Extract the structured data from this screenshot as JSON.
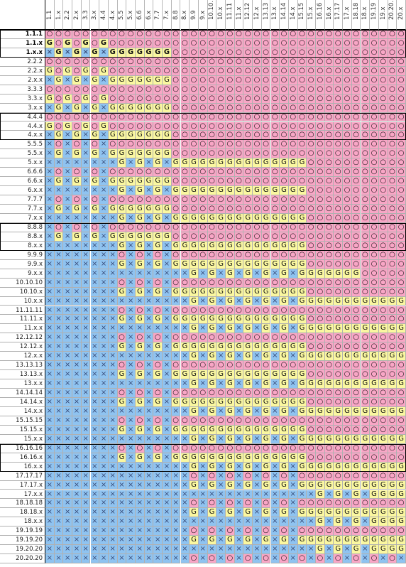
{
  "columns": [
    "1.1",
    "1.x",
    "2.2",
    "2.x",
    "3.3",
    "3.x",
    "4.4",
    "4.x",
    "5.5",
    "5.x",
    "6.6",
    "6.x",
    "7.7",
    "7.x",
    "8.8",
    "8.x",
    "9.9",
    "9.x",
    "10.10.",
    "10.x",
    "11.11",
    "11.x",
    "12.12",
    "12.x",
    "13.13",
    "13.x",
    "14.14",
    "14.x",
    "15.15",
    "15.x",
    "16.16",
    "16.x",
    "17.17",
    "17.x",
    "18.18",
    "18.x",
    "19.19",
    "19.x",
    "20.20.",
    "20.x"
  ],
  "marks": {
    "O": "○",
    "G": "G",
    "X": "×"
  },
  "colors": {
    "O": "#f9a6c6",
    "G": "#faf7a0",
    "X": "#8fc3f0"
  },
  "rows": [
    {
      "label": "1.1.1",
      "bold": true,
      "cells": "OOOOOOOOOOOOOOOOOOOOOOOOOOOOOOOOOOOOOOOO"
    },
    {
      "label": "1.1.x",
      "bold": true,
      "cells": "GOGOGOGOOOOOOOOOOOOOOOOOOOOOOOOOOOOOOOOO"
    },
    {
      "label": "1.x.x",
      "bold": true,
      "cells": "XGXGXGXGGGGGGGOOOOOOOOOOOOOOOOOOOOOOOOOO"
    },
    {
      "label": "2.2.2",
      "bold": false,
      "cells": "OOOOOOOOOOOOOOOOOOOOOOOOOOOOOOOOOOOOOOOO"
    },
    {
      "label": "2.2.x",
      "bold": false,
      "cells": "GOGOGOGOOOOOOOOOOOOOOOOOOOOOOOOOOOOOOOOO"
    },
    {
      "label": "2.x.x",
      "bold": false,
      "cells": "XGXGXGXGGGGGGGOOOOOOOOOOOOOOOOOOOOOOOOOO"
    },
    {
      "label": "3.3.3",
      "bold": false,
      "cells": "OOOOOOOOOOOOOOOOOOOOOOOOOOOOOOOOOOOOOOOO"
    },
    {
      "label": "3.3.x",
      "bold": false,
      "cells": "GOGOGOGOOOOOOOOOOOOOOOOOOOOOOOOOOOOOOOOO"
    },
    {
      "label": "3.x.x",
      "bold": false,
      "cells": "XGXGXGXGGGGGGGOOOOOOOOOOOOOOOOOOOOOOOOOO"
    },
    {
      "label": "4.4.4",
      "bold": false,
      "cells": "OOOOOOOOOOOOOOOOOOOOOOOOOOOOOOOOOOOOOOOO"
    },
    {
      "label": "4.4.x",
      "bold": false,
      "cells": "GOGOGOGOOOOOOOOOOOOOOOOOOOOOOOOOOOOOOOOO"
    },
    {
      "label": "4.x.x",
      "bold": false,
      "cells": "XGXGXGXGGGGGGGOOOOOOOOOOOOOOOOOOOOOOOOOO"
    },
    {
      "label": "5.5.5",
      "bold": false,
      "cells": "XOXOXOXOOOOOOOOOOOOOOOOOOOOOOOOOOOOOOOOO"
    },
    {
      "label": "5.5.x",
      "bold": false,
      "cells": "XGXGXGXGGGGGGGOOOOOOOOOOOOOOOOOOOOOOOOOO"
    },
    {
      "label": "5.x.x",
      "bold": false,
      "cells": "XXXXXXXXGXGXGXGGGGGGGGGGGGGGGOOOOOOOOOOO"
    },
    {
      "label": "6.6.6",
      "bold": false,
      "cells": "XOXOXOXOOOOOOOOOOOOOOOOOOOOOOOOOOOOOOOOO"
    },
    {
      "label": "6.6.x",
      "bold": false,
      "cells": "XGXGXGXGGGGGGGOOOOOOOOOOOOOOOOOOOOOOOOOO"
    },
    {
      "label": "6.x.x",
      "bold": false,
      "cells": "XXXXXXXXGXGXGXGGGGGGGGGGGGGGGOOOOOOOOOOO"
    },
    {
      "label": "7.7.7",
      "bold": false,
      "cells": "XOXOXOXOOOOOOOOOOOOOOOOOOOOOOOOOOOOOOOOO"
    },
    {
      "label": "7.7.x",
      "bold": false,
      "cells": "XGXGXGXGGGGGGGOOOOOOOOOOOOOOOOOOOOOOOOOO"
    },
    {
      "label": "7.x.x",
      "bold": false,
      "cells": "XXXXXXXXGXGXGXGGGGGGGGGGGGGGGOOOOOOOOOOO"
    },
    {
      "label": "8.8.8",
      "bold": false,
      "cells": "XOXOXOXOOOOOOOOOOOOOOOOOOOOOOOOOOOOOOOOO"
    },
    {
      "label": "8.8.x",
      "bold": false,
      "cells": "XGXGXGXGGGGGGGOOOOOOOOOOOOOOOOOOOOOOOOOO"
    },
    {
      "label": "8.x.x",
      "bold": false,
      "cells": "XXXXXXXXGXGXGXGGGGGGGGGGGGGGGOOOOOOOOOOO"
    },
    {
      "label": "9.9.9",
      "bold": false,
      "cells": "XXXXXXXXOXOXOXOOOOOOOOOOOOOOOOOOOOOOOOOO"
    },
    {
      "label": "9.9.x",
      "bold": false,
      "cells": "XXXXXXXXGXGXGXGGGGGGGGGGGGGGGOOOOOOOOOOO"
    },
    {
      "label": "9.x.x",
      "bold": false,
      "cells": "XXXXXXXXXXXXXXXXGXGXGXGXGXGXGGGGGGGOOOOO"
    },
    {
      "label": "10.10.10",
      "bold": false,
      "cells": "XXXXXXXXOXOXOXOOOOOOOOOOOOOOOOOOOOOOOOOO"
    },
    {
      "label": "10.10.x",
      "bold": false,
      "cells": "XXXXXXXXGXGXGXGGGGGGGGGGGGGGGOOOOOOOOOOO"
    },
    {
      "label": "10.x.x",
      "bold": false,
      "cells": "XXXXXXXXXXXXXXXXGXGXGXGXGXGXGGGGGGGGGGGG"
    },
    {
      "label": "11.11.11",
      "bold": false,
      "cells": "XXXXXXXXOXOXOXOOOOOOOOOOOOOOOOOOOOOOOOOO"
    },
    {
      "label": "11.11.x",
      "bold": false,
      "cells": "XXXXXXXXGXGXGXGGGGGGGGGGGGGGGOOOOOOOOOOO"
    },
    {
      "label": "11.x.x",
      "bold": false,
      "cells": "XXXXXXXXXXXXXXXXGXGXGXGXGXGXGGGGGGGGGGGG"
    },
    {
      "label": "12.12.12",
      "bold": false,
      "cells": "XXXXXXXXOXOXOXOOOOOOOOOOOOOOOOOOOOOOOOOO"
    },
    {
      "label": "12.12.x",
      "bold": false,
      "cells": "XXXXXXXXGXGXGXGGGGGGGGGGGGGGGOOOOOOOOOOO"
    },
    {
      "label": "12.x.x",
      "bold": false,
      "cells": "XXXXXXXXXXXXXXXXGXGXGXGXGXGXGGGGGGGGGGGG"
    },
    {
      "label": "13.13.13",
      "bold": false,
      "cells": "XXXXXXXXOXOXOXOOOOOOOOOOOOOOOOOOOOOOOOOO"
    },
    {
      "label": "13.13.x",
      "bold": false,
      "cells": "XXXXXXXXGXGXGXGGGGGGGGGGGGGGGOOOOOOOOOOO"
    },
    {
      "label": "13.x.x",
      "bold": false,
      "cells": "XXXXXXXXXXXXXXXXGXGXGXGXGXGXGGGGGGGGGGGG"
    },
    {
      "label": "14.14.14",
      "bold": false,
      "cells": "XXXXXXXXOXOXOXOOOOOOOOOOOOOOOOOOOOOOOOOO"
    },
    {
      "label": "14.14.x",
      "bold": false,
      "cells": "XXXXXXXXGXGXGXGGGGGGGGGGGGGGGOOOOOOOOOOO"
    },
    {
      "label": "14.x.x",
      "bold": false,
      "cells": "XXXXXXXXXXXXXXXXGXGXGXGXGXGXGGGGGGGGGGGG"
    },
    {
      "label": "15.15.15",
      "bold": false,
      "cells": "XXXXXXXXOXOXOXOOOOOOOOOOOOOOOOOOOOOOOOOO"
    },
    {
      "label": "15.15.x",
      "bold": false,
      "cells": "XXXXXXXXGXGXGXGGGGGGGGGGGGGGGOOOOOOOOOOO"
    },
    {
      "label": "15.x.x",
      "bold": false,
      "cells": "XXXXXXXXXXXXXXXXGXGXGXGXGXGXGGGGGGGGGGGG"
    },
    {
      "label": "16.16.16",
      "bold": false,
      "cells": "XXXXXXXXOXOXOXOOOOOOOOOOOOOOOOOOOOOOOOOO"
    },
    {
      "label": "16.16.x",
      "bold": false,
      "cells": "XXXXXXXXGXGXGXGGGGGGGGGGGGGGGOOOOOOOOOOO"
    },
    {
      "label": "16.x.x",
      "bold": false,
      "cells": "XXXXXXXXXXXXXXXXGXGXGXGXGXGXGGGGGGGGGGGG"
    },
    {
      "label": "17.17.17",
      "bold": false,
      "cells": "XXXXXXXXXXXXXXXXOXOXOXOXOXOXOOOOOOOOOOOO"
    },
    {
      "label": "17.17.x",
      "bold": false,
      "cells": "XXXXXXXXXXXXXXXXGXGXGXGXGXGXGGGGGGGGGGGG"
    },
    {
      "label": "17.x.x",
      "bold": false,
      "cells": "XXXXXXXXXXXXXXXXXXXXXXXXXXXXXXGXGXGXGGGG"
    },
    {
      "label": "18.18.18",
      "bold": false,
      "cells": "XXXXXXXXXXXXXXXXOXOXOXOXOXOXOOOOOOOOOOOO"
    },
    {
      "label": "18.18.x",
      "bold": false,
      "cells": "XXXXXXXXXXXXXXXXGXGXGXGXGXGXGGGGGGGGGGGG"
    },
    {
      "label": "18.x.x",
      "bold": false,
      "cells": "XXXXXXXXXXXXXXXXXXXXXXXXXXXXXXGXGXGXGGGG"
    },
    {
      "label": "19.19.19",
      "bold": false,
      "cells": "XXXXXXXXXXXXXXXXOXOXOXOXOXOXOOOOOOOOOOOO"
    },
    {
      "label": "19.19.20",
      "bold": false,
      "cells": "XXXXXXXXXXXXXXXXGXGXGXGXGXGXGGGGGGGGGGGG"
    },
    {
      "label": "19.20.20",
      "bold": false,
      "cells": "XXXXXXXXXXXXXXXXXXXXXXXXXXXXXXGXGXGXGGGG"
    },
    {
      "label": "20.20.20",
      "bold": false,
      "cells": "XXXXXXXXXXXXXXXXOXOXOXOXOXOXOXOXOXOXOXOX"
    }
  ]
}
